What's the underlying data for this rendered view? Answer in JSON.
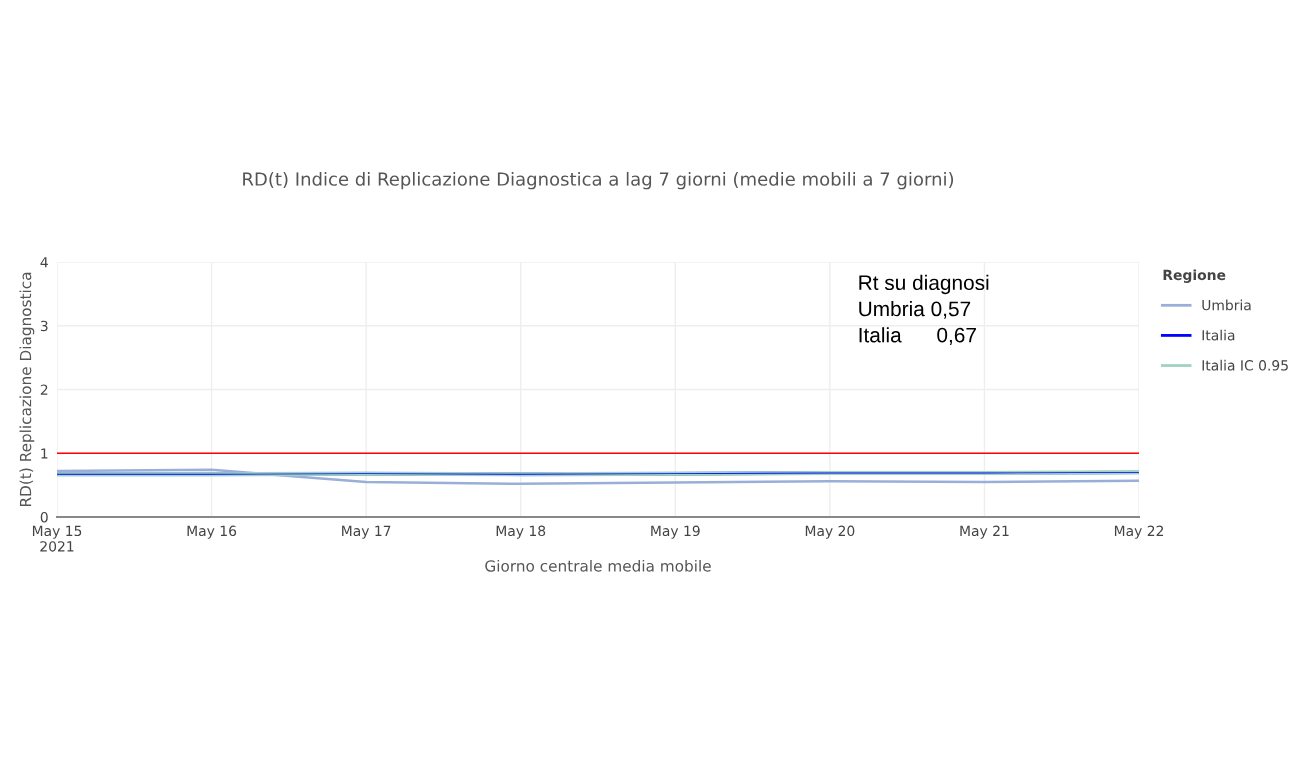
{
  "chart_data": {
    "type": "line",
    "title": "RD(t) Indice di Replicazione Diagnostica a lag 7 giorni (medie mobili a 7 giorni)",
    "xlabel": "Giorno centrale media mobile",
    "ylabel": "RD(t) Replicazione Diagnostica",
    "legend_title": "Regione",
    "x": [
      "2021-05-15",
      "2021-05-16",
      "2021-05-17",
      "2021-05-18",
      "2021-05-19",
      "2021-05-20",
      "2021-05-21",
      "2021-05-22"
    ],
    "series": [
      {
        "name": "Umbria",
        "color": "#9aafd8",
        "values": [
          0.72,
          0.74,
          0.55,
          0.52,
          0.54,
          0.56,
          0.55,
          0.57
        ]
      },
      {
        "name": "Italia",
        "color": "#0000ff",
        "values": [
          0.67,
          0.67,
          0.68,
          0.67,
          0.68,
          0.69,
          0.69,
          0.7
        ]
      },
      {
        "name": "Italia IC 0.95",
        "color": "#9fd3c0",
        "values": [
          0.65,
          0.65,
          0.66,
          0.65,
          0.66,
          0.67,
          0.67,
          0.68
        ]
      },
      {
        "color": "#9fd3c0",
        "values": [
          0.69,
          0.69,
          0.7,
          0.69,
          0.7,
          0.71,
          0.71,
          0.72
        ]
      }
    ],
    "xlim": [
      "2021-05-15",
      "2021-05-22"
    ],
    "xticks": [
      {
        "value": "2021-05-15",
        "label": "May 15\n2021"
      },
      {
        "value": "2021-05-16",
        "label": "May 16"
      },
      {
        "value": "2021-05-17",
        "label": "May 17"
      },
      {
        "value": "2021-05-18",
        "label": "May 18"
      },
      {
        "value": "2021-05-19",
        "label": "May 19"
      },
      {
        "value": "2021-05-20",
        "label": "May 20"
      },
      {
        "value": "2021-05-21",
        "label": "May 21"
      },
      {
        "value": "2021-05-22",
        "label": "May 22"
      }
    ],
    "ylim": [
      0,
      4
    ],
    "yticks": [
      0,
      1,
      2,
      3,
      4
    ],
    "ref_lines": [
      {
        "axis": "y",
        "value": 1,
        "color": "#ff0000"
      }
    ],
    "annotations": [
      "Rt su diagnosi\nUmbria 0,57\nItalia      0,67"
    ],
    "grid": true,
    "legend": "top right",
    "line_style": "solid",
    "marker": "none"
  }
}
